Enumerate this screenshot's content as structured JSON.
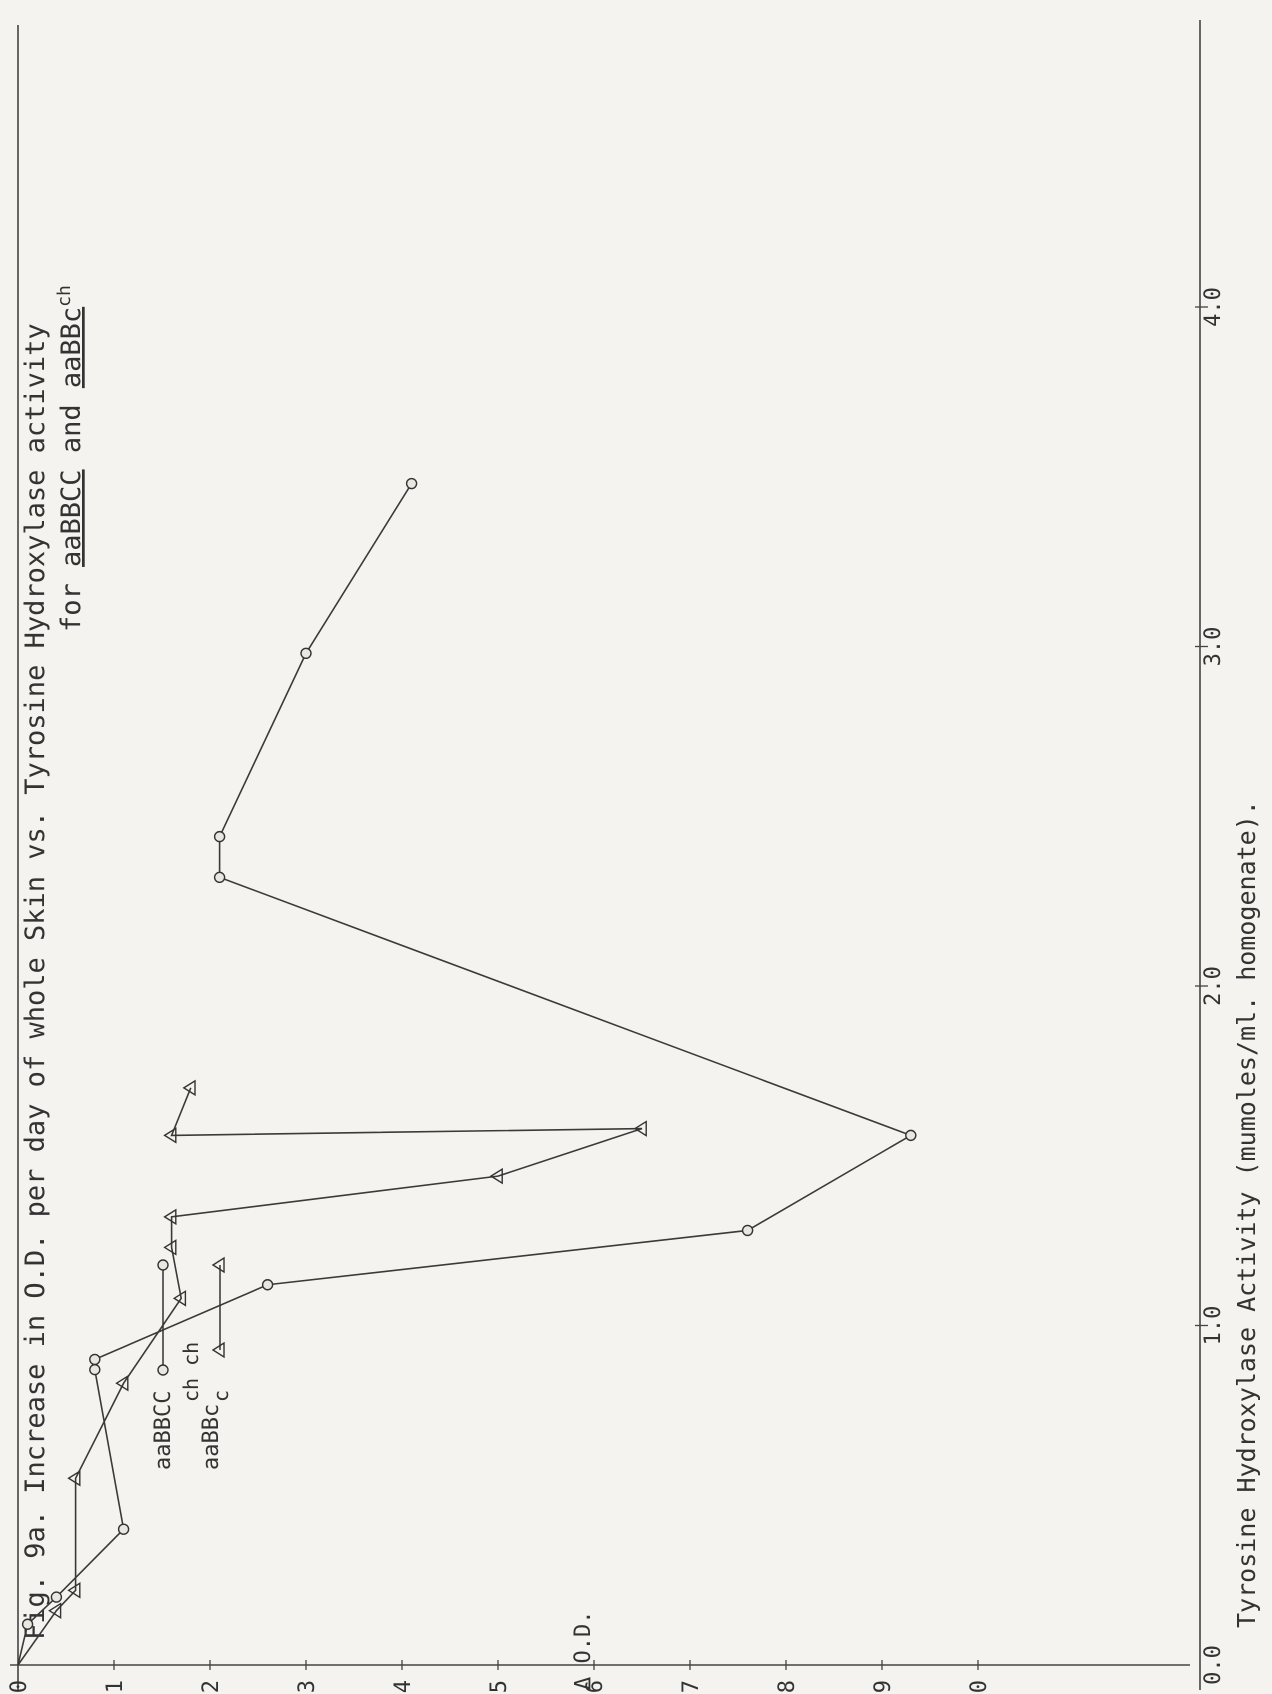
{
  "chart_data": {
    "type": "line",
    "title": "Fig. 9a.   Increase in O.D. per day of whole Skin vs. Tyrosine Hydroxylase activity",
    "subtitle_prefix": "for ",
    "subtitle_genotype_1": "aaBBCC",
    "subtitle_and": " and ",
    "subtitle_genotype_2": "aaBBc",
    "subtitle_genotype_2_tail": "ch",
    "xlabel": "Tyrosine Hydroxylase Activity (mumoles/ml. homogenate).",
    "ylabel": "Δ O.D.",
    "xlim": [
      0.0,
      4.3
    ],
    "ylim": [
      0.0,
      1.05
    ],
    "x_ticks": [
      "0.0",
      "1.0",
      "2.0",
      "3.0",
      "4.0"
    ],
    "y_ticks": [
      "0.0",
      "0.1",
      "0.2",
      "0.3",
      "0.4",
      "0.5",
      "0.6",
      "0.7",
      "0.8",
      "0.9",
      "1.0"
    ],
    "x_tick_values": [
      0.0,
      1.0,
      2.0,
      3.0,
      4.0
    ],
    "y_tick_values": [
      0.0,
      0.1,
      0.2,
      0.3,
      0.4,
      0.5,
      0.6,
      0.7,
      0.8,
      0.9,
      1.0
    ],
    "legend_position": "top-left",
    "series": [
      {
        "name": "aaBBCC",
        "marker": "circle",
        "points": [
          [
            0.0,
            0.0
          ],
          [
            0.12,
            0.01
          ],
          [
            0.2,
            0.04
          ],
          [
            0.4,
            0.11
          ],
          [
            0.87,
            0.08
          ],
          [
            0.9,
            0.08
          ],
          [
            1.12,
            0.26
          ],
          [
            1.28,
            0.76
          ],
          [
            1.56,
            0.93
          ],
          [
            2.32,
            0.21
          ],
          [
            2.44,
            0.21
          ],
          [
            2.98,
            0.3
          ],
          [
            3.48,
            0.41
          ]
        ]
      },
      {
        "name": "aaBBc",
        "name_superscript": "ch ch",
        "name_subscript": "c",
        "marker": "triangle",
        "points": [
          [
            0.0,
            0.0
          ],
          [
            0.16,
            0.04
          ],
          [
            0.22,
            0.06
          ],
          [
            0.55,
            0.06
          ],
          [
            0.83,
            0.11
          ],
          [
            1.08,
            0.17
          ],
          [
            1.23,
            0.16
          ],
          [
            1.32,
            0.16
          ],
          [
            1.44,
            0.5
          ],
          [
            1.58,
            0.65
          ],
          [
            1.56,
            0.16
          ],
          [
            1.7,
            0.18
          ]
        ]
      }
    ]
  }
}
